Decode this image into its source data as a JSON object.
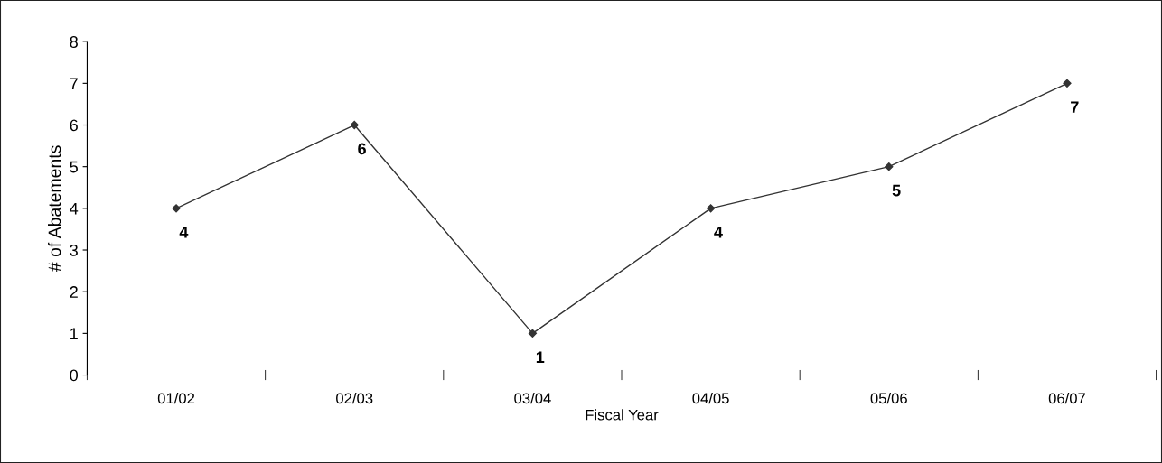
{
  "chart_data": {
    "type": "line",
    "xlabel": "Fiscal Year",
    "ylabel": "# of Abatements",
    "categories": [
      "01/02",
      "02/03",
      "03/04",
      "04/05",
      "05/06",
      "06/07"
    ],
    "series": [
      {
        "color": "#333333",
        "values": [
          4,
          6,
          1,
          4,
          5,
          7
        ]
      }
    ],
    "ylim": [
      0,
      8
    ],
    "yticks": [
      0,
      1,
      2,
      3,
      4,
      5,
      6,
      7,
      8
    ],
    "marker": "diamond",
    "line_style": "solid",
    "data_labels": true,
    "grid": false,
    "legend": false
  }
}
